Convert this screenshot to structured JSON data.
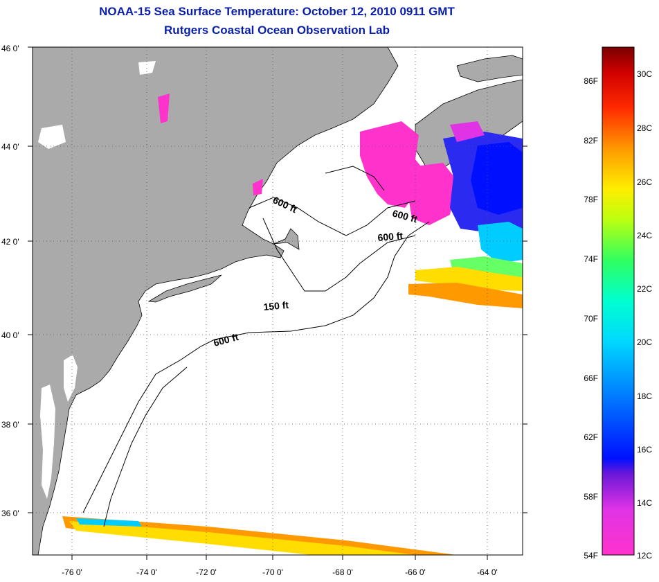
{
  "header": {
    "title": "NOAA-15 Sea Surface Temperature:  October 12, 2010 0911 GMT",
    "subtitle": "Rutgers Coastal Ocean Observation Lab"
  },
  "map": {
    "lon_range": [
      -77,
      -63
    ],
    "lat_range": [
      35,
      46
    ],
    "lon_ticks": [
      "-76 0'",
      "-74 0'",
      "-72 0'",
      "-70 0'",
      "-68 0'",
      "-66 0'",
      "-64 0'"
    ],
    "lat_ticks": [
      "46 0'",
      "44 0'",
      "42 0'",
      "40 0'",
      "38 0'",
      "36 0'"
    ],
    "grid": true,
    "contour_labels": [
      "600 ft",
      "600 ft",
      "600 ft",
      "150 ft",
      "600 ft"
    ],
    "colors": {
      "land": "#aaaaaa",
      "ocean": "#ffffff",
      "grid": "#555555"
    }
  },
  "colorbar": {
    "fahrenheit": [
      "86F",
      "82F",
      "78F",
      "74F",
      "70F",
      "66F",
      "62F",
      "58F",
      "54F"
    ],
    "celsius": [
      "30C",
      "28C",
      "26C",
      "24C",
      "22C",
      "20C",
      "18C",
      "16C",
      "14C",
      "12C"
    ]
  }
}
